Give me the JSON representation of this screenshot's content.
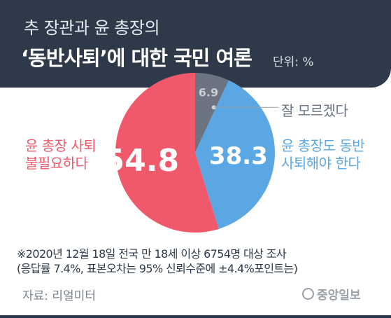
{
  "header": {
    "title_line1": "추 장관과 윤 총장의",
    "title_line2": "‘동반사퇴’에 대한 국민 여론",
    "unit": "단위: %"
  },
  "chart_data": {
    "type": "pie",
    "categories": [
      "윤 총장 사퇴 불필요하다",
      "윤 총장도 동반 사퇴해야 한다",
      "잘 모르겠다"
    ],
    "values": [
      54.8,
      38.3,
      6.9
    ],
    "colors": [
      "#f0596c",
      "#5aa7e3",
      "#6b7480"
    ],
    "value_labels": [
      "54.8",
      "38.3",
      "6.9"
    ],
    "legend": {
      "left_line1": "윤 총장 사퇴",
      "left_line2": "불필요하다",
      "right_line1": "윤 총장도 동반",
      "right_line2": "사퇴해야 한다",
      "dont_know": "잘 모르겠다"
    }
  },
  "footer": {
    "note_line1": "※2020년 12월 18일 전국 만 18세 이상 6754명 대상 조사",
    "note_line2": "(응답률 7.4%, 표본오차는 95% 신뢰수준에 ±4.4%포인트는)",
    "source": "자료: 리얼미터",
    "logo": "중앙일보"
  }
}
